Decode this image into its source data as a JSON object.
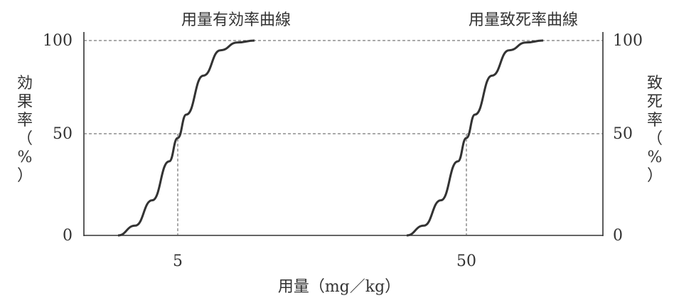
{
  "chart_data": {
    "type": "line",
    "title": "",
    "xlabel": "用量（mg／kg）",
    "y_left_label": "効果率（%）",
    "y_right_label": "致死率（%）",
    "x_ticks": [
      "5",
      "50"
    ],
    "y_ticks": [
      "0",
      "50",
      "100"
    ],
    "ylim": [
      0,
      100
    ],
    "grid": "dashed reference lines at 50 and 100, and vertical drops at 5 and 50",
    "series": [
      {
        "name": "用量有効率曲線",
        "x_label_dose": 5,
        "points": [
          [
            -4,
            0
          ],
          [
            -2,
            5
          ],
          [
            0,
            18
          ],
          [
            2,
            38
          ],
          [
            3,
            50
          ],
          [
            4,
            62
          ],
          [
            6,
            82
          ],
          [
            8,
            95
          ],
          [
            10,
            99
          ],
          [
            12,
            100
          ]
        ],
        "x_scale": "relative steps around labeled dose (same horizontal extent as original)"
      },
      {
        "name": "用量致死率曲線",
        "x_label_dose": 50,
        "points": [
          [
            -4,
            0
          ],
          [
            -2,
            5
          ],
          [
            0,
            18
          ],
          [
            2,
            38
          ],
          [
            3,
            50
          ],
          [
            4,
            62
          ],
          [
            6,
            82
          ],
          [
            8,
            95
          ],
          [
            10,
            99
          ],
          [
            12,
            100
          ]
        ],
        "x_scale": "relative steps around labeled dose (same horizontal extent as original)"
      }
    ],
    "colors": {
      "curve": "#333333",
      "axis": "#333333",
      "dashed": "#555555"
    }
  }
}
